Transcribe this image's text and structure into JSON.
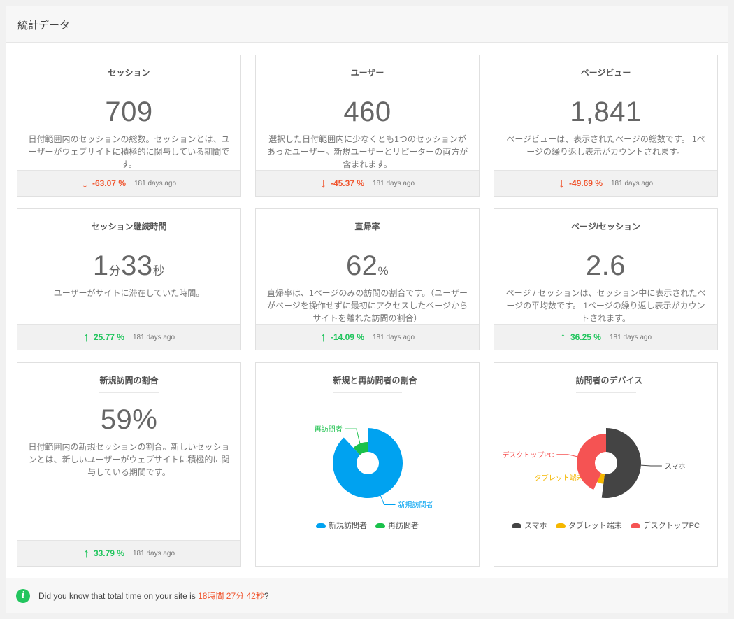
{
  "panel": {
    "title": "統計データ"
  },
  "cards": [
    {
      "title": "セッション",
      "value": "709",
      "unit": "",
      "desc": "日付範囲内のセッションの総数。セッションとは、ユーザーがウェブサイトに積極的に関与している期間です。",
      "change": "-63.07 %",
      "direction": "down",
      "ago": "181 days ago"
    },
    {
      "title": "ユーザー",
      "value": "460",
      "unit": "",
      "desc": "選択した日付範囲内に少なくとも1つのセッションがあったユーザー。新規ユーザーとリピーターの両方が含まれます。",
      "change": "-45.37 %",
      "direction": "down",
      "ago": "181 days ago"
    },
    {
      "title": "ページビュー",
      "value": "1,841",
      "unit": "",
      "desc": "ページビューは、表示されたページの総数です。 1ページの繰り返し表示がカウントされます。",
      "change": "-49.69 %",
      "direction": "down",
      "ago": "181 days ago"
    },
    {
      "title": "セッション継続時間",
      "value_parts": [
        "1",
        "分",
        "33",
        "秒"
      ],
      "desc": "ユーザーがサイトに滞在していた時間。",
      "change": "25.77 %",
      "direction": "up",
      "ago": "181 days ago"
    },
    {
      "title": "直帰率",
      "value": "62",
      "unit": "%",
      "desc": "直帰率は、1ページのみの訪問の割合です。（ユーザーがページを操作せずに最初にアクセスしたページからサイトを離れた訪問の割合）",
      "change": "-14.09 %",
      "direction": "up",
      "ago": "181 days ago"
    },
    {
      "title": "ページ/セッション",
      "value": "2.6",
      "unit": "",
      "desc": "ページ / セッションは、セッション中に表示されたページの平均数です。 1ページの繰り返し表示がカウントされます。",
      "change": "36.25 %",
      "direction": "up",
      "ago": "181 days ago"
    },
    {
      "title": "新規訪問の割合",
      "value": "59%",
      "unit": "",
      "desc": "日付範囲内の新規セッションの割合。新しいセッションとは、新しいユーザーがウェブサイトに積極的に関与している期間です。",
      "change": "33.79 %",
      "direction": "up",
      "ago": "181 days ago"
    }
  ],
  "icons": {
    "down": "arrow-down-icon",
    "up": "arrow-up-icon",
    "info": "info-icon"
  },
  "colors": {
    "down": "#f0542d",
    "up": "#22c55e"
  },
  "chart_data": [
    {
      "type": "pie",
      "title": "新規と再訪問者の割合",
      "categories": [
        "新規訪問者",
        "再訪問者"
      ],
      "values": [
        88,
        12
      ],
      "colors": [
        "#00a2f0",
        "#1ac14b"
      ],
      "legend": "bottom"
    },
    {
      "type": "pie",
      "title": "訪問者のデバイス",
      "categories": [
        "スマホ",
        "タブレット端末",
        "デスクトップPC"
      ],
      "values": [
        52,
        5,
        43
      ],
      "colors": [
        "#444444",
        "#f5b700",
        "#f55353"
      ],
      "legend": "bottom"
    }
  ],
  "footer": {
    "text": "Did you know that total time on your site is ",
    "highlight": "18時間 27分 42秒",
    "suffix": "?"
  }
}
